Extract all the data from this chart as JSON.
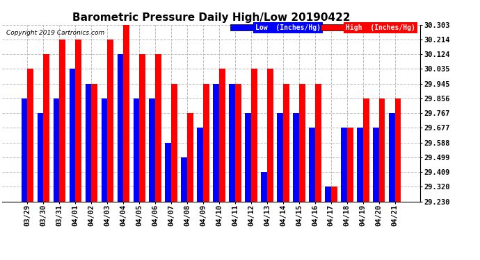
{
  "title": "Barometric Pressure Daily High/Low 20190422",
  "copyright": "Copyright 2019 Cartronics.com",
  "legend_low": "Low  (Inches/Hg)",
  "legend_high": "High  (Inches/Hg)",
  "dates": [
    "03/29",
    "03/30",
    "03/31",
    "04/01",
    "04/02",
    "04/03",
    "04/04",
    "04/05",
    "04/06",
    "04/07",
    "04/08",
    "04/09",
    "04/10",
    "04/11",
    "04/12",
    "04/13",
    "04/14",
    "04/15",
    "04/16",
    "04/17",
    "04/18",
    "04/19",
    "04/20",
    "04/21"
  ],
  "high_values": [
    30.035,
    30.124,
    30.214,
    30.214,
    29.945,
    30.214,
    30.303,
    30.124,
    30.124,
    29.945,
    29.767,
    29.945,
    30.035,
    29.945,
    30.035,
    30.035,
    29.945,
    29.945,
    29.945,
    29.32,
    29.677,
    29.856,
    29.856,
    29.856
  ],
  "low_values": [
    29.856,
    29.767,
    29.856,
    30.035,
    29.945,
    29.856,
    30.124,
    29.856,
    29.856,
    29.588,
    29.499,
    29.677,
    29.945,
    29.945,
    29.767,
    29.409,
    29.767,
    29.767,
    29.677,
    29.32,
    29.677,
    29.677,
    29.677,
    29.767
  ],
  "baseline": 29.23,
  "ylim_min": 29.23,
  "ylim_max": 30.303,
  "yticks": [
    29.23,
    29.32,
    29.409,
    29.499,
    29.588,
    29.677,
    29.767,
    29.856,
    29.945,
    30.035,
    30.124,
    30.214,
    30.303
  ],
  "bar_width": 0.38,
  "high_color": "#ff0000",
  "low_color": "#0000ff",
  "bg_color": "#ffffff",
  "grid_color": "#bbbbbb",
  "title_fontsize": 11,
  "tick_fontsize": 7.5,
  "label_fontsize": 7
}
